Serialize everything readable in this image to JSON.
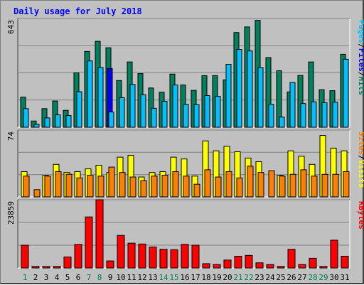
{
  "title": "Daily usage for July 2018",
  "colors": {
    "hits": "#00805c",
    "files": "#0000ff",
    "pages": "#00c0ff",
    "visits": "#ffff00",
    "sites": "#ff8000",
    "kbytes": "#ff0000",
    "weekend_day": "#00805c",
    "weekday_day": "#000000",
    "background": "#c0c0c0",
    "grid": "#808080"
  },
  "side_labels": {
    "top": [
      "Pages",
      "/",
      "Files",
      "/",
      "Hits"
    ],
    "middle": [
      "Sites",
      "/",
      "Visits"
    ],
    "bottom": [
      "KBytes"
    ]
  },
  "chart_data": [
    {
      "type": "bar",
      "panel": "top",
      "ymax_label": "643",
      "ylim": [
        0,
        643
      ],
      "categories": [
        "1",
        "2",
        "3",
        "4",
        "5",
        "6",
        "7",
        "8",
        "9",
        "10",
        "11",
        "12",
        "13",
        "14",
        "15",
        "16",
        "17",
        "18",
        "19",
        "20",
        "21",
        "22",
        "23",
        "24",
        "25",
        "26",
        "27",
        "28",
        "29",
        "30",
        "31"
      ],
      "series": [
        {
          "name": "Hits",
          "values": [
            178,
            37,
            110,
            155,
            100,
            322,
            448,
            508,
            470,
            276,
            386,
            317,
            232,
            207,
            314,
            250,
            218,
            305,
            305,
            280,
            560,
            593,
            632,
            412,
            334,
            209,
            306,
            386,
            222,
            216,
            431
          ]
        },
        {
          "name": "Files",
          "values": [
            0,
            0,
            0,
            0,
            0,
            0,
            0,
            0,
            347,
            0,
            0,
            0,
            0,
            0,
            0,
            0,
            0,
            0,
            0,
            0,
            0,
            0,
            0,
            0,
            0,
            0,
            0,
            0,
            0,
            0,
            0
          ]
        },
        {
          "name": "Pages",
          "values": [
            110,
            17,
            55,
            73,
            69,
            210,
            392,
            353,
            90,
            175,
            253,
            192,
            112,
            153,
            250,
            135,
            134,
            187,
            182,
            372,
            460,
            451,
            353,
            136,
            60,
            265,
            140,
            150,
            145,
            148,
            402
          ]
        }
      ]
    },
    {
      "type": "bar",
      "panel": "middle",
      "ymax_label": "74",
      "ylim": [
        0,
        74
      ],
      "categories": [
        "1",
        "2",
        "3",
        "4",
        "5",
        "6",
        "7",
        "8",
        "9",
        "10",
        "11",
        "12",
        "13",
        "14",
        "15",
        "16",
        "17",
        "18",
        "19",
        "20",
        "21",
        "22",
        "23",
        "24",
        "25",
        "26",
        "27",
        "28",
        "29",
        "30",
        "31"
      ],
      "series": [
        {
          "name": "Visits",
          "values": [
            28,
            0,
            24,
            36,
            27,
            28,
            31,
            35,
            27,
            44,
            46,
            22,
            27,
            28,
            44,
            42,
            23,
            62,
            51,
            56,
            50,
            43,
            39,
            0,
            24,
            51,
            45,
            36,
            68,
            54,
            51
          ]
        },
        {
          "name": "Sites",
          "values": [
            23,
            8,
            23,
            28,
            25,
            21,
            24,
            23,
            33,
            27,
            22,
            18,
            23,
            24,
            28,
            23,
            14,
            30,
            22,
            28,
            21,
            34,
            27,
            29,
            23,
            25,
            30,
            23,
            25,
            25,
            28
          ]
        }
      ]
    },
    {
      "type": "bar",
      "panel": "bottom",
      "ymax_label": "23859",
      "ylim": [
        0,
        23859
      ],
      "categories": [
        "1",
        "2",
        "3",
        "4",
        "5",
        "6",
        "7",
        "8",
        "9",
        "10",
        "11",
        "12",
        "13",
        "14",
        "15",
        "16",
        "17",
        "18",
        "19",
        "20",
        "21",
        "22",
        "23",
        "24",
        "25",
        "26",
        "27",
        "28",
        "29",
        "30",
        "31"
      ],
      "series": [
        {
          "name": "KBytes",
          "values": [
            7952,
            520,
            520,
            520,
            3840,
            8244,
            17844,
            23859,
            2464,
            11384,
            8656,
            8379,
            7320,
            6554,
            6374,
            8244,
            7952,
            1498,
            1190,
            2758,
            4105,
            4395,
            1790,
            1190,
            520,
            6554,
            1190,
            3378,
            520,
            9700,
            4105
          ]
        }
      ]
    }
  ],
  "days": [
    {
      "label": "1",
      "weekend": true
    },
    {
      "label": "2",
      "weekend": false
    },
    {
      "label": "3",
      "weekend": false
    },
    {
      "label": "4",
      "weekend": false
    },
    {
      "label": "5",
      "weekend": false
    },
    {
      "label": "6",
      "weekend": false
    },
    {
      "label": "7",
      "weekend": true
    },
    {
      "label": "8",
      "weekend": true
    },
    {
      "label": "9",
      "weekend": false
    },
    {
      "label": "10",
      "weekend": false
    },
    {
      "label": "11",
      "weekend": false
    },
    {
      "label": "12",
      "weekend": false
    },
    {
      "label": "13",
      "weekend": false
    },
    {
      "label": "14",
      "weekend": true
    },
    {
      "label": "15",
      "weekend": true
    },
    {
      "label": "16",
      "weekend": false
    },
    {
      "label": "17",
      "weekend": false
    },
    {
      "label": "18",
      "weekend": false
    },
    {
      "label": "19",
      "weekend": false
    },
    {
      "label": "20",
      "weekend": false
    },
    {
      "label": "21",
      "weekend": true
    },
    {
      "label": "22",
      "weekend": true
    },
    {
      "label": "23",
      "weekend": false
    },
    {
      "label": "24",
      "weekend": false
    },
    {
      "label": "25",
      "weekend": false
    },
    {
      "label": "26",
      "weekend": false
    },
    {
      "label": "27",
      "weekend": false
    },
    {
      "label": "28",
      "weekend": true
    },
    {
      "label": "29",
      "weekend": true
    },
    {
      "label": "30",
      "weekend": false
    },
    {
      "label": "31",
      "weekend": false
    }
  ]
}
